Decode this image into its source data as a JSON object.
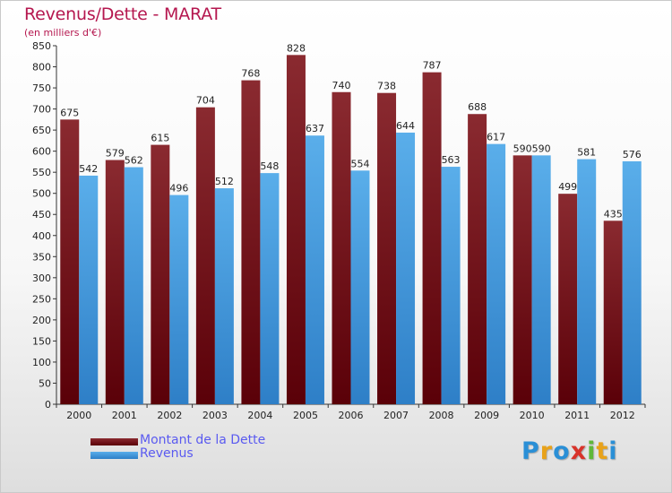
{
  "title": "Revenus/Dette - MARAT",
  "subtitle": "(en milliers d'€)",
  "colors": {
    "dette_top": "#8a2a30",
    "dette_bottom": "#5a0008",
    "revenus_top": "#5aaeea",
    "revenus_bottom": "#2e7fc7",
    "axis_text": "#222222",
    "title": "#b5174f",
    "legend_text": "#5a5af0"
  },
  "logo": {
    "letters": [
      "P",
      "r",
      "o",
      "x",
      "i",
      "t",
      "i"
    ],
    "colors": [
      "#2a8fd6",
      "#e8a21a",
      "#2a8fd6",
      "#d8332a",
      "#5fb83a",
      "#e8a21a",
      "#2a8fd6"
    ]
  },
  "chart_data": {
    "type": "bar",
    "categories": [
      "2000",
      "2001",
      "2002",
      "2003",
      "2004",
      "2005",
      "2006",
      "2007",
      "2008",
      "2009",
      "2010",
      "2011",
      "2012"
    ],
    "series": [
      {
        "name": "Montant de la Dette",
        "values": [
          675,
          579,
          615,
          704,
          768,
          828,
          740,
          738,
          787,
          688,
          590,
          499,
          435
        ]
      },
      {
        "name": "Revenus",
        "values": [
          542,
          562,
          496,
          512,
          548,
          637,
          554,
          644,
          563,
          617,
          590,
          581,
          576
        ]
      }
    ],
    "ylim": [
      0,
      850
    ],
    "yticks": [
      0,
      50,
      100,
      150,
      200,
      250,
      300,
      350,
      400,
      450,
      500,
      550,
      600,
      650,
      700,
      750,
      800,
      850
    ],
    "grid": false,
    "legend_position": "bottom-left"
  }
}
